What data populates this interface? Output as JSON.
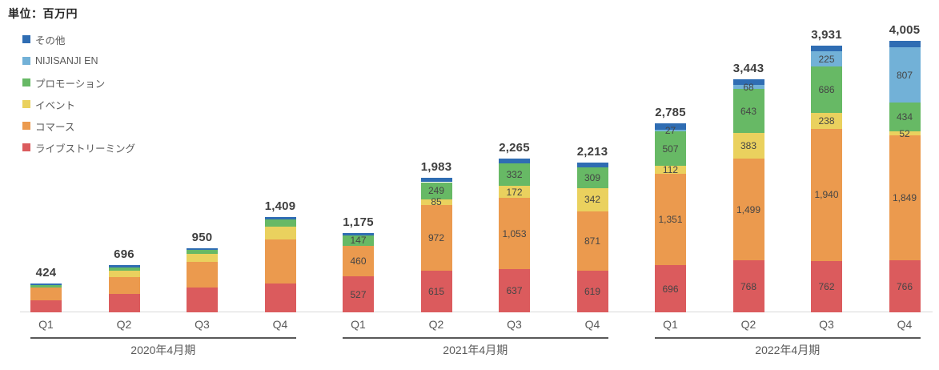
{
  "unit_label": "単位：百万円",
  "chart_data": {
    "type": "bar",
    "stacked": true,
    "title": "単位：百万円",
    "unit": "百万円",
    "grid": false,
    "ylim": [
      0,
      4200
    ],
    "legend_position": "top-left-vertical",
    "legend_order_top_to_bottom": [
      "その他",
      "NIJISANJI EN",
      "プロモーション",
      "イベント",
      "コマース",
      "ライブストリーミング"
    ],
    "categories": [
      "Q1",
      "Q2",
      "Q3",
      "Q4",
      "Q1",
      "Q2",
      "Q3",
      "Q4",
      "Q1",
      "Q2",
      "Q3",
      "Q4"
    ],
    "group_labels": [
      "2020年4月期",
      "2021年4月期",
      "2022年4月期"
    ],
    "totals": [
      424,
      696,
      950,
      1409,
      1175,
      1983,
      2265,
      2213,
      2785,
      3443,
      3931,
      4005
    ],
    "totals_display": [
      "424",
      "696",
      "950",
      "1,409",
      "1,175",
      "1,983",
      "2,265",
      "2,213",
      "2,785",
      "3,443",
      "3,931",
      "4,005"
    ],
    "series": [
      {
        "key": "live-streaming",
        "name": "ライブストリーミング",
        "color": "#DB5B5D",
        "values": [
          180,
          270,
          370,
          425,
          527,
          615,
          637,
          619,
          696,
          768,
          762,
          766
        ],
        "labels": [
          "",
          "",
          "",
          "",
          "527",
          "615",
          "637",
          "619",
          "696",
          "768",
          "762",
          "766"
        ]
      },
      {
        "key": "commerce",
        "name": "コマース",
        "color": "#EB9A4E",
        "values": [
          185,
          255,
          380,
          650,
          460,
          972,
          1053,
          871,
          1351,
          1499,
          1940,
          1849
        ],
        "labels": [
          "",
          "",
          "",
          "",
          "460",
          "972",
          "1,053",
          "871",
          "1,351",
          "1,499",
          "1,940",
          "1,849"
        ]
      },
      {
        "key": "event",
        "name": "イベント",
        "color": "#EAD15E",
        "values": [
          0,
          95,
          110,
          195,
          0,
          85,
          172,
          342,
          112,
          383,
          238,
          52
        ],
        "labels": [
          "",
          "",
          "",
          "",
          "",
          "85",
          "172",
          "342",
          "112",
          "383",
          "238",
          "52"
        ]
      },
      {
        "key": "promotion",
        "name": "プロモーション",
        "color": "#67B965",
        "values": [
          35,
          45,
          60,
          100,
          147,
          249,
          332,
          309,
          507,
          643,
          686,
          434
        ],
        "labels": [
          "",
          "",
          "",
          "",
          "147",
          "249",
          "332",
          "309",
          "507",
          "643",
          "686",
          "434"
        ]
      },
      {
        "key": "nijisanji-en",
        "name": "NIJISANJI EN",
        "color": "#72B1D7",
        "values": [
          0,
          0,
          0,
          0,
          0,
          0,
          0,
          0,
          27,
          68,
          225,
          807
        ],
        "labels": [
          "",
          "",
          "",
          "",
          "",
          "",
          "",
          "",
          "27",
          "68",
          "225",
          "807"
        ]
      },
      {
        "key": "other",
        "name": "その他",
        "color": "#2F6DB3",
        "values": [
          24,
          31,
          30,
          39,
          41,
          62,
          71,
          72,
          92,
          82,
          80,
          97
        ],
        "labels": [
          "",
          "",
          "",
          "",
          "",
          "",
          "",
          "",
          "",
          "",
          "",
          ""
        ]
      }
    ]
  }
}
